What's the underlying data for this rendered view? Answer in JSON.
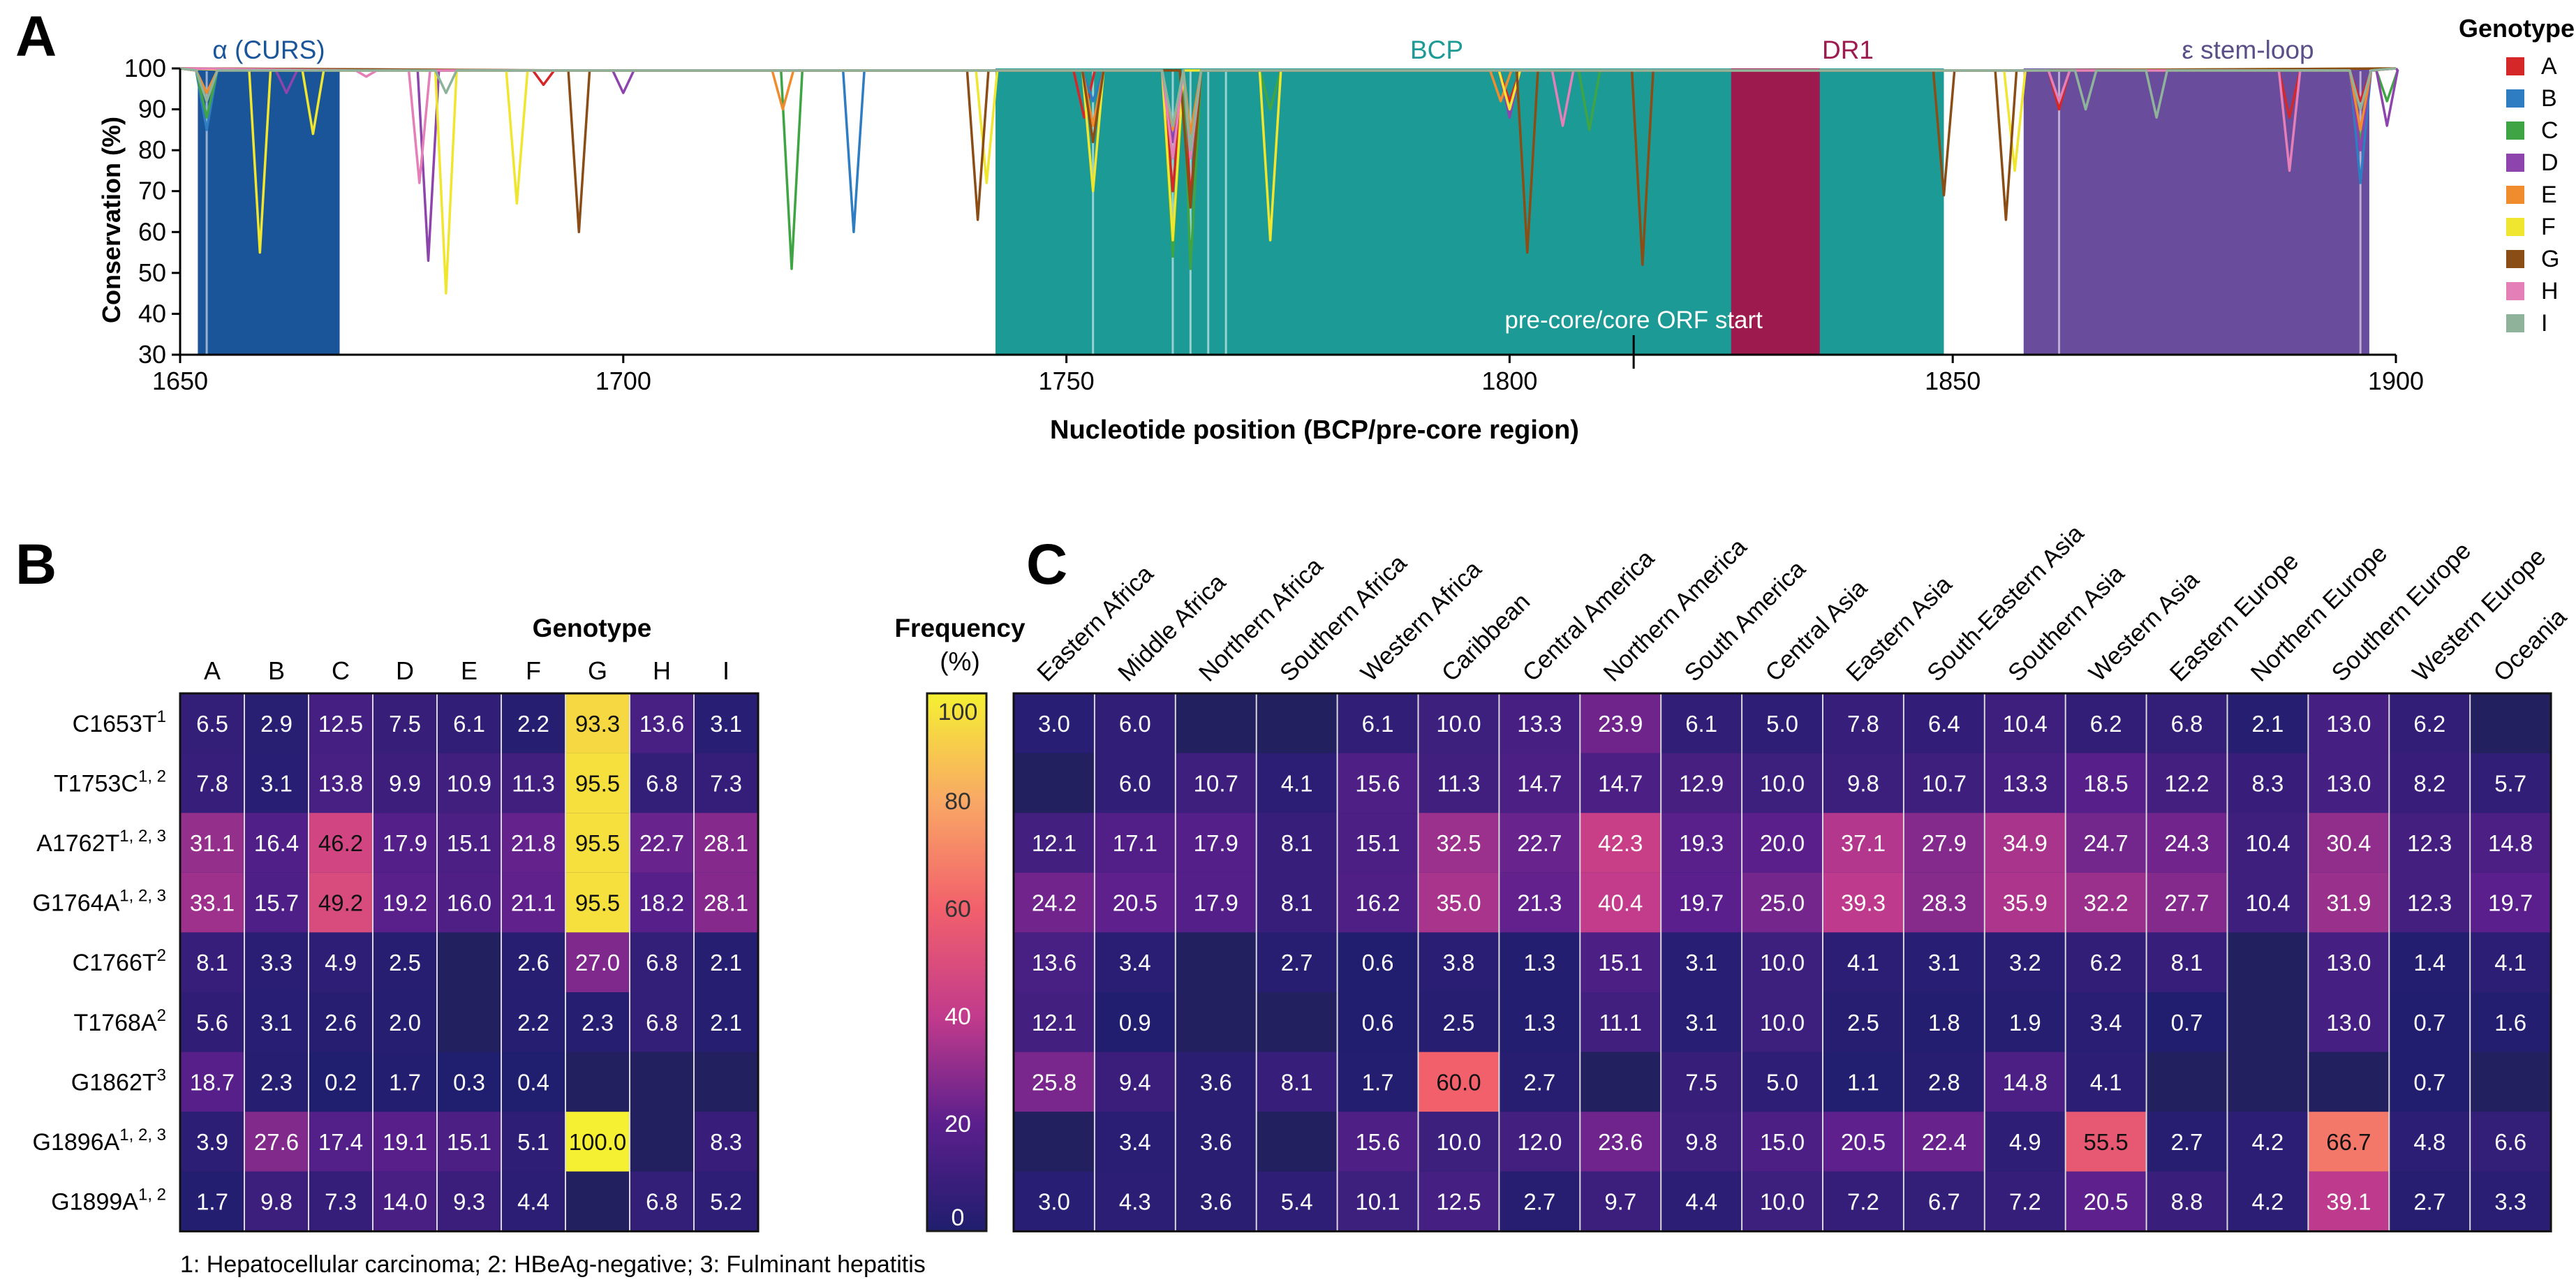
{
  "panel_labels": {
    "a": "A",
    "b": "B",
    "c": "C"
  },
  "footnote": "1: Hepatocellular carcinoma; 2: HBeAg-negative; 3: Fulminant hepatitis",
  "colors": {
    "curs": "#1A5599",
    "bcp": "#1C9A96",
    "dr1": "#9C1A4D",
    "stemloop": "#6A4C9C",
    "genotypes": [
      "#D62728",
      "#2E7DC2",
      "#3FA544",
      "#8E44AD",
      "#F08C2E",
      "#F0E62F",
      "#8B4D16",
      "#E57FB8",
      "#8FB39A"
    ]
  },
  "chart_data": [
    {
      "type": "line",
      "title": "",
      "xlabel": "Nucleotide position (BCP/pre-core region)",
      "ylabel": "Conservation (%)",
      "xlim": [
        1650,
        1900
      ],
      "ylim": [
        30,
        100
      ],
      "xticks": [
        1650,
        1700,
        1750,
        1800,
        1850,
        1900
      ],
      "yticks": [
        30,
        40,
        50,
        60,
        70,
        80,
        90,
        100
      ],
      "legend_title": "Genotype",
      "legend": [
        "A",
        "B",
        "C",
        "D",
        "E",
        "F",
        "G",
        "H",
        "I"
      ],
      "regions": [
        {
          "label": "α (CURS)",
          "start": 1652,
          "end": 1668,
          "color_key": "curs"
        },
        {
          "label": "BCP",
          "start": 1742,
          "end": 1849,
          "color_key": "bcp"
        },
        {
          "label": "DR1",
          "start": 1825,
          "end": 1835,
          "color_key": "dr1"
        },
        {
          "label": "ε stem-loop",
          "start": 1858,
          "end": 1897,
          "color_key": "stemloop"
        }
      ],
      "annotation": {
        "text": "pre-core/core ORF start",
        "x": 1814
      },
      "series": [
        {
          "name": "A",
          "dips": [
            [
              1691,
              96
            ],
            [
              1752,
              88
            ],
            [
              1762,
              70
            ],
            [
              1764,
              68
            ],
            [
              1800,
              92
            ],
            [
              1862,
              90
            ],
            [
              1888,
              88
            ],
            [
              1896,
              92
            ]
          ]
        },
        {
          "name": "B",
          "dips": [
            [
              1653,
              85
            ],
            [
              1726,
              60
            ],
            [
              1753,
              92
            ],
            [
              1762,
              82
            ],
            [
              1764,
              80
            ],
            [
              1862,
              92
            ],
            [
              1896,
              72
            ]
          ]
        },
        {
          "name": "C",
          "dips": [
            [
              1653,
              88
            ],
            [
              1719,
              51
            ],
            [
              1753,
              86
            ],
            [
              1762,
              54
            ],
            [
              1764,
              51
            ],
            [
              1773,
              90
            ],
            [
              1809,
              85
            ],
            [
              1896,
              82
            ],
            [
              1899,
              92
            ]
          ]
        },
        {
          "name": "D",
          "dips": [
            [
              1653,
              92
            ],
            [
              1662,
              94
            ],
            [
              1678,
              53
            ],
            [
              1700,
              94
            ],
            [
              1762,
              82
            ],
            [
              1764,
              80
            ],
            [
              1800,
              88
            ],
            [
              1896,
              80
            ],
            [
              1899,
              86
            ]
          ]
        },
        {
          "name": "E",
          "dips": [
            [
              1653,
              94
            ],
            [
              1718,
              90
            ],
            [
              1753,
              86
            ],
            [
              1762,
              85
            ],
            [
              1764,
              84
            ],
            [
              1799,
              92
            ],
            [
              1896,
              85
            ]
          ]
        },
        {
          "name": "F",
          "dips": [
            [
              1659,
              55
            ],
            [
              1665,
              84
            ],
            [
              1680,
              45
            ],
            [
              1688,
              67
            ],
            [
              1741,
              72
            ],
            [
              1753,
              70
            ],
            [
              1762,
              58
            ],
            [
              1773,
              58
            ],
            [
              1800,
              90
            ],
            [
              1857,
              75
            ]
          ]
        },
        {
          "name": "G",
          "dips": [
            [
              1695,
              60
            ],
            [
              1740,
              63
            ],
            [
              1753,
              82
            ],
            [
              1764,
              66
            ],
            [
              1802,
              55
            ],
            [
              1815,
              52
            ],
            [
              1849,
              69
            ],
            [
              1856,
              63
            ]
          ]
        },
        {
          "name": "H",
          "dips": [
            [
              1671,
              98
            ],
            [
              1677,
              72
            ],
            [
              1762,
              78
            ],
            [
              1764,
              78
            ],
            [
              1806,
              86
            ],
            [
              1862,
              92
            ],
            [
              1888,
              75
            ],
            [
              1896,
              90
            ]
          ]
        },
        {
          "name": "I",
          "dips": [
            [
              1653,
              92
            ],
            [
              1680,
              94
            ],
            [
              1762,
              86
            ],
            [
              1764,
              80
            ],
            [
              1865,
              90
            ],
            [
              1873,
              88
            ],
            [
              1896,
              90
            ]
          ]
        }
      ]
    },
    {
      "type": "heatmap",
      "title": "Genotype",
      "columns": [
        "A",
        "B",
        "C",
        "D",
        "E",
        "F",
        "G",
        "H",
        "I"
      ],
      "rows": [
        {
          "base": "C1653T",
          "sup": "1"
        },
        {
          "base": "T1753C",
          "sup": "1, 2"
        },
        {
          "base": "A1762T",
          "sup": "1, 2, 3"
        },
        {
          "base": "G1764A",
          "sup": "1, 2, 3"
        },
        {
          "base": "C1766T",
          "sup": "2"
        },
        {
          "base": "T1768A",
          "sup": "2"
        },
        {
          "base": "G1862T",
          "sup": "3"
        },
        {
          "base": "G1896A",
          "sup": "1, 2, 3"
        },
        {
          "base": "G1899A",
          "sup": "1, 2"
        }
      ],
      "values": [
        [
          6.5,
          2.9,
          12.5,
          7.5,
          6.1,
          2.2,
          93.3,
          13.6,
          3.1
        ],
        [
          7.8,
          3.1,
          13.8,
          9.9,
          10.9,
          11.3,
          95.5,
          6.8,
          7.3
        ],
        [
          31.1,
          16.4,
          46.2,
          17.9,
          15.1,
          21.8,
          95.5,
          22.7,
          28.1
        ],
        [
          33.1,
          15.7,
          49.2,
          19.2,
          16.0,
          21.1,
          95.5,
          18.2,
          28.1
        ],
        [
          8.1,
          3.3,
          4.9,
          2.5,
          null,
          2.6,
          27.0,
          6.8,
          2.1
        ],
        [
          5.6,
          3.1,
          2.6,
          2.0,
          null,
          2.2,
          2.3,
          6.8,
          2.1
        ],
        [
          18.7,
          2.3,
          0.2,
          1.7,
          0.3,
          0.4,
          null,
          null,
          null
        ],
        [
          3.9,
          27.6,
          17.4,
          19.1,
          15.1,
          5.1,
          100.0,
          null,
          8.3
        ],
        [
          1.7,
          9.8,
          7.3,
          14.0,
          9.3,
          4.4,
          null,
          6.8,
          5.2
        ]
      ]
    },
    {
      "type": "heatmap",
      "title": "",
      "columns": [
        "Eastern Africa",
        "Middle Africa",
        "Northern Africa",
        "Southern Africa",
        "Western Africa",
        "Caribbean",
        "Central America",
        "Northern America",
        "South America",
        "Central Asia",
        "Eastern Asia",
        "South-Eastern Asia",
        "Southern Asia",
        "Western Asia",
        "Eastern Europe",
        "Northern Europe",
        "Southern Europe",
        "Western Europe",
        "Oceania"
      ],
      "values": [
        [
          3.0,
          6.0,
          null,
          null,
          6.1,
          10.0,
          13.3,
          23.9,
          6.1,
          5.0,
          7.8,
          6.4,
          10.4,
          6.2,
          6.8,
          2.1,
          13.0,
          6.2,
          null
        ],
        [
          null,
          6.0,
          10.7,
          4.1,
          15.6,
          11.3,
          14.7,
          14.7,
          12.9,
          10.0,
          9.8,
          10.7,
          13.3,
          18.5,
          12.2,
          8.3,
          13.0,
          8.2,
          5.7
        ],
        [
          12.1,
          17.1,
          17.9,
          8.1,
          15.1,
          32.5,
          22.7,
          42.3,
          19.3,
          20.0,
          37.1,
          27.9,
          34.9,
          24.7,
          24.3,
          10.4,
          30.4,
          12.3,
          14.8
        ],
        [
          24.2,
          20.5,
          17.9,
          8.1,
          16.2,
          35.0,
          21.3,
          40.4,
          19.7,
          25.0,
          39.3,
          28.3,
          35.9,
          32.2,
          27.7,
          10.4,
          31.9,
          12.3,
          19.7
        ],
        [
          13.6,
          3.4,
          null,
          2.7,
          0.6,
          3.8,
          1.3,
          15.1,
          3.1,
          10.0,
          4.1,
          3.1,
          3.2,
          6.2,
          8.1,
          null,
          13.0,
          1.4,
          4.1
        ],
        [
          12.1,
          0.9,
          null,
          null,
          0.6,
          2.5,
          1.3,
          11.1,
          3.1,
          10.0,
          2.5,
          1.8,
          1.9,
          3.4,
          0.7,
          null,
          13.0,
          0.7,
          1.6
        ],
        [
          25.8,
          9.4,
          3.6,
          8.1,
          1.7,
          60.0,
          2.7,
          null,
          7.5,
          5.0,
          1.1,
          2.8,
          14.8,
          4.1,
          null,
          null,
          null,
          0.7,
          null
        ],
        [
          null,
          3.4,
          3.6,
          null,
          15.6,
          10.0,
          12.0,
          23.6,
          9.8,
          15.0,
          20.5,
          22.4,
          4.9,
          55.5,
          2.7,
          4.2,
          66.7,
          4.8,
          6.6
        ],
        [
          3.0,
          4.3,
          3.6,
          5.4,
          10.1,
          12.5,
          2.7,
          9.7,
          4.4,
          10.0,
          7.2,
          6.7,
          7.2,
          20.5,
          8.8,
          4.2,
          39.1,
          2.7,
          3.3
        ]
      ]
    }
  ],
  "colorbar": {
    "title_line1": "Frequency",
    "title_line2": "(%)",
    "ticks": [
      0,
      20,
      40,
      60,
      80,
      100
    ],
    "stops": [
      {
        "value": 0,
        "color": "#1F1E6E"
      },
      {
        "value": 20,
        "color": "#5B1F8C"
      },
      {
        "value": 40,
        "color": "#C23B8C"
      },
      {
        "value": 60,
        "color": "#F2606C"
      },
      {
        "value": 80,
        "color": "#F9A865"
      },
      {
        "value": 100,
        "color": "#F5F032"
      }
    ]
  }
}
